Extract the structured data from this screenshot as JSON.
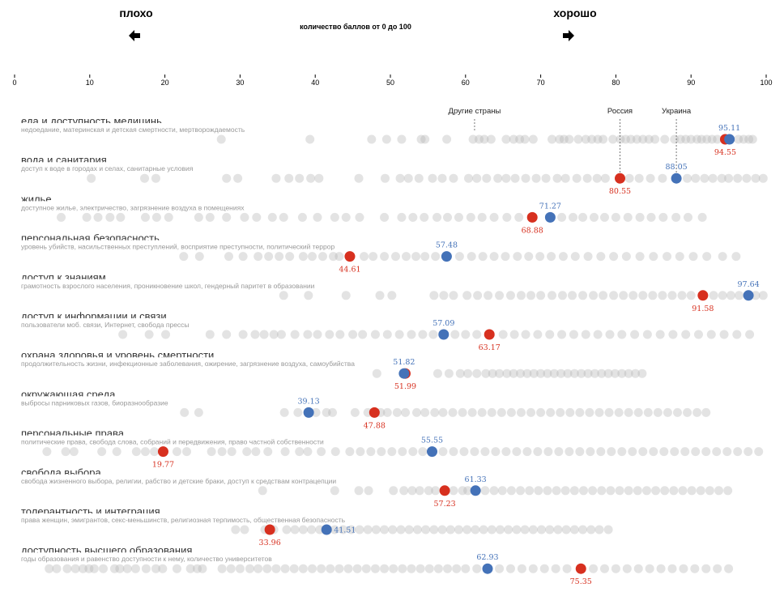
{
  "header": {
    "bad_label": "плохо",
    "good_label": "хорошо",
    "subtitle": "количество баллов от 0 до 100",
    "bad_icon": "arrow-left-icon",
    "good_icon": "arrow-right-icon"
  },
  "colors": {
    "russia": "#d7301f",
    "ukraine": "#4472b8",
    "others": "#b0b0b0"
  },
  "chart_data": {
    "type": "scatter",
    "title": "",
    "xlabel": "количество баллов от 0 до 100",
    "xlim": [
      0,
      100
    ],
    "xticks": [
      "0",
      "10",
      "20",
      "30",
      "40",
      "50",
      "60",
      "70",
      "80",
      "90",
      "100"
    ],
    "legend": {
      "others": "Другие страны",
      "russia": "Россия",
      "ukraine": "Украина"
    },
    "rows": [
      {
        "title": "еда и доступность медицины",
        "subtitle": "недоедание, материнская и детская смертности, мертворождаемость",
        "russia": 94.55,
        "ukraine": 95.11,
        "russia_label": "94.55",
        "ukraine_label": "95.11",
        "others": [
          27.5,
          39.3,
          47.5,
          49.5,
          51.5,
          54.1,
          54.6,
          57.5,
          61,
          61.8,
          62.5,
          63.4,
          65.4,
          66.4,
          67.2,
          67.9,
          69,
          71.5,
          72.5,
          73.1,
          73.8,
          75,
          76,
          76.8,
          77.6,
          78.3,
          79.6,
          80.6,
          81.3,
          82,
          82.8,
          83.6,
          84.4,
          85.2,
          86.5,
          87.8,
          88.6,
          89.3,
          90,
          90.8,
          91.4,
          92.1,
          92.8,
          93.5,
          96.3,
          97,
          97.7,
          98.2
        ]
      },
      {
        "title": "вода и санитария",
        "subtitle": "доступ к воде в городах и селах, санитарные условия",
        "russia": 80.55,
        "ukraine": 88.05,
        "russia_label": "80.55",
        "ukraine_label": "88.05",
        "others": [
          10.2,
          17.3,
          18.8,
          28.2,
          29.7,
          34.8,
          36.5,
          37.9,
          39.4,
          40.5,
          45.8,
          49.3,
          51.3,
          52.4,
          53.8,
          55.6,
          56.9,
          58.4,
          60.4,
          61.5,
          62.8,
          64.3,
          65.4,
          66.6,
          68,
          69.4,
          70.7,
          72.2,
          73.3,
          74.8,
          76.2,
          77.5,
          78.6,
          81.8,
          83.1,
          84.6,
          86.2,
          89.5,
          90.6,
          91.8,
          92.9,
          94.1,
          95,
          96.2,
          97.4,
          98.6,
          99.6
        ]
      },
      {
        "title": "жилье",
        "subtitle": "доступное жилье, электричество, загрязнение воздуха в помещениях",
        "russia": 68.88,
        "ukraine": 71.27,
        "russia_label": "68.88",
        "ukraine_label": "71.27",
        "others": [
          6.2,
          9.6,
          11.1,
          12.7,
          14.1,
          17.4,
          18.9,
          20.5,
          24.5,
          26,
          28.2,
          30.6,
          32.2,
          34.3,
          35.8,
          38.3,
          40.3,
          42.6,
          44.1,
          45.9,
          49.2,
          51.5,
          53,
          54.5,
          56.2,
          57.6,
          59.1,
          60.7,
          62.2,
          63.8,
          65.5,
          67.1,
          72.8,
          74.3,
          75.6,
          77.1,
          78.5,
          80,
          81.6,
          83.2,
          84.7,
          86.3,
          88,
          89.6,
          91.5
        ]
      },
      {
        "title": "персональная безопасность",
        "subtitle": "уровень убийств, насильственных преступлений, восприятие преступности, политический террор",
        "russia": 44.61,
        "ukraine": 57.48,
        "russia_label": "44.61",
        "ukraine_label": "57.48",
        "others": [
          22.5,
          24.6,
          28.5,
          30.4,
          32.4,
          33.8,
          35.2,
          36.6,
          38.4,
          39.6,
          41,
          42.4,
          43.2,
          46.5,
          47.7,
          49.2,
          50.7,
          52.1,
          53.4,
          54.6,
          56,
          59.2,
          60.8,
          62.3,
          63.8,
          65.3,
          66.9,
          68.4,
          69.9,
          71.4,
          73,
          74.6,
          76.3,
          78,
          79.7,
          81.4,
          83.2,
          85,
          86.8,
          88.5,
          90.3,
          92.1,
          94.2,
          96
        ]
      },
      {
        "title": "доступ к знаниям",
        "subtitle": "грамотность взрослого населения, проникновение школ, гендерный паритет в образовании",
        "russia": 91.58,
        "ukraine": 97.64,
        "russia_label": "91.58",
        "ukraine_label": "97.64",
        "others": [
          35.8,
          39.1,
          44.1,
          48.6,
          50.2,
          55.8,
          57.1,
          58.4,
          60.2,
          61.6,
          63,
          64.5,
          66,
          67.4,
          68.7,
          70,
          71.5,
          72.9,
          74.2,
          75.6,
          77,
          78.3,
          79.7,
          81,
          82.3,
          83.6,
          84.9,
          86.2,
          87.5,
          88.8,
          90,
          93,
          94.2,
          95.3,
          96.4,
          98.6,
          99.6
        ]
      },
      {
        "title": "доступ к информации и связи",
        "subtitle": "пользователи моб. связи, Интернет, свобода прессы",
        "russia": 63.17,
        "ukraine": 57.09,
        "russia_label": "63.17",
        "ukraine_label": "57.09",
        "others": [
          14.4,
          17.9,
          20.1,
          26,
          28.2,
          30.4,
          32,
          33.2,
          34.5,
          35.5,
          37.3,
          39,
          40.3,
          41.9,
          43.3,
          45,
          46.3,
          48,
          49.6,
          51.2,
          52.8,
          54.3,
          55.7,
          58.6,
          60,
          61.5,
          65,
          66.5,
          68,
          69.6,
          71.2,
          72.8,
          74.4,
          76,
          77.6,
          79.2,
          80.8,
          82.5,
          84.2,
          85.9,
          87.6,
          89.3,
          91,
          92.7,
          94.4,
          96.1,
          97.8
        ]
      },
      {
        "title": "охрана здоровья и уровень смертности",
        "subtitle": "продолжительность жизни, инфекционные заболевания, ожирение, загрязнение воздуха, самоубийства",
        "russia": 51.99,
        "ukraine": 51.82,
        "russia_label": "51.99",
        "ukraine_label": "51.82",
        "others": [
          48.2,
          56.3,
          57.8,
          59.3,
          60.3,
          61.5,
          62.7,
          63.6,
          64.5,
          65.5,
          66.4,
          67.3,
          68.2,
          69.1,
          70,
          70.9,
          71.8,
          72.7,
          73.6,
          74.5,
          75.4,
          76.3,
          77.2,
          78.1,
          79,
          79.9,
          80.8,
          81.7,
          82.6,
          83.5
        ]
      },
      {
        "title": "окружающая среда",
        "subtitle": "выбросы парниковых газов, биоразнообразие",
        "russia": 47.88,
        "ukraine": 39.13,
        "russia_label": "47.88",
        "ukraine_label": "39.13",
        "others": [
          22.6,
          24.5,
          35.9,
          37.7,
          40.1,
          41.5,
          42.3,
          45.3,
          47,
          48.7,
          49.6,
          50.9,
          52,
          53.5,
          54.6,
          55.9,
          57,
          58.3,
          59.6,
          60.9,
          62.2,
          63.5,
          64.8,
          66.1,
          67.4,
          68.7,
          70,
          71.3,
          72.6,
          73.9,
          75.2,
          76.5,
          77.8,
          79.1,
          80.4,
          81.7,
          83,
          84.3,
          85.6,
          86.9,
          88.2,
          89.5,
          90.8,
          92
        ]
      },
      {
        "title": "персональные права",
        "subtitle": "политические права, свобода слова, собраний и передвижения, право частной собственности",
        "russia": 19.77,
        "ukraine": 55.55,
        "russia_label": "19.77",
        "ukraine_label": "55.55",
        "others": [
          4.3,
          6.8,
          7.9,
          11.6,
          13.6,
          16.2,
          17.4,
          18.6,
          21.6,
          22.9,
          26.2,
          27.6,
          28.9,
          30.9,
          32.1,
          33.7,
          36,
          37.9,
          39,
          40.8,
          42.7,
          44.6,
          46,
          47.4,
          48.8,
          50.2,
          51.6,
          53,
          54.3,
          57,
          58.4,
          59.8,
          61.2,
          62.6,
          64,
          65.4,
          66.8,
          68.2,
          69.6,
          71,
          72.4,
          73.8,
          75.2,
          76.6,
          78,
          79.4,
          80.8,
          82.2,
          83.6,
          85,
          86.4,
          87.8,
          89.2,
          90.6,
          92,
          93.4,
          94.8,
          96.2,
          97.6,
          99
        ]
      },
      {
        "title": "свобода выбора",
        "subtitle": "свобода жизненного выбора, религии, рабство и детские браки, доступ к средствам контрацепции",
        "russia": 57.23,
        "ukraine": 61.33,
        "russia_label": "57.23",
        "ukraine_label": "61.33",
        "others": [
          33,
          42.6,
          45.8,
          47.1,
          50.4,
          51.8,
          52.9,
          53.9,
          55.1,
          56,
          58.4,
          59.6,
          60.3,
          62.6,
          63.8,
          64.9,
          66.1,
          67.3,
          68.5,
          69.7,
          70.9,
          72.1,
          73.3,
          74.5,
          75.7,
          76.9,
          78.1,
          79.3,
          80.5,
          81.7,
          82.9,
          84.1,
          85.3,
          86.5,
          87.7,
          88.9,
          90.1,
          91.3,
          92.5,
          93.7,
          94.9
        ]
      },
      {
        "title": "толерантность и интеграция",
        "subtitle": "права женщин, эмигрантов, секс-меньшинств, религиозная терпимость, общественная безопасность",
        "russia": 33.96,
        "ukraine": 41.51,
        "russia_label": "33.96",
        "ukraine_label": "41.51",
        "others": [
          29.4,
          30.6,
          33.3,
          34.5,
          36.2,
          37.3,
          38.4,
          39.5,
          40.6,
          42.6,
          43.7,
          44.8,
          45.9,
          47,
          48.1,
          49.2,
          50.3,
          51.4,
          52.5,
          53.6,
          54.7,
          55.8,
          56.9,
          58,
          59.1,
          60.2,
          61.3,
          62.4,
          63.5,
          64.6,
          65.7,
          66.8,
          67.9,
          69,
          70.1,
          71.2,
          72.3,
          73.4,
          74.5,
          75.6,
          76.7,
          77.8,
          79
        ]
      },
      {
        "title": "доступность высшего образования",
        "subtitle": "годы образования и равенство доступности к нему, количество университетов",
        "russia": 75.35,
        "ukraine": 62.93,
        "russia_label": "75.35",
        "ukraine_label": "62.93",
        "others": [
          4.6,
          5.6,
          7,
          8.1,
          9.1,
          9.9,
          10.6,
          11.8,
          13.3,
          14,
          15,
          16.1,
          17.5,
          18.8,
          19.7,
          21.6,
          23.4,
          24.3,
          25,
          27.6,
          28.8,
          30,
          31.3,
          32.4,
          33.6,
          34.8,
          36,
          37.2,
          38.4,
          39.6,
          40.8,
          42,
          43.2,
          44.4,
          45.6,
          46.8,
          48,
          49.2,
          50.4,
          51.6,
          52.8,
          54,
          55.2,
          56.4,
          57.6,
          58.8,
          60,
          61.5,
          64.5,
          66,
          67.5,
          69,
          70.5,
          72,
          73.5,
          77,
          78.5,
          80,
          81.5,
          83,
          84.5,
          86,
          87.5,
          89,
          90.5,
          92,
          93.5,
          95
        ]
      }
    ]
  }
}
